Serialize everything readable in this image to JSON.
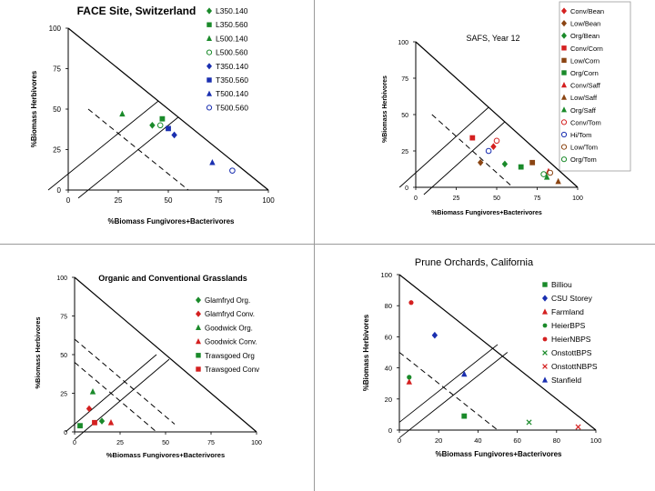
{
  "chart_data": [
    {
      "type": "scatter",
      "title": "FACE Site, Switzerland",
      "xlabel": "%Biomass Fungivores+Bacterivores",
      "ylabel": "%Biomass Herbivores",
      "xlim": [
        0,
        100
      ],
      "ylim": [
        0,
        100
      ],
      "xticks": [
        "0",
        "25",
        "50",
        "75",
        "100"
      ],
      "yticks": [
        "0",
        "25",
        "50",
        "75",
        "100"
      ],
      "series": [
        {
          "name": "L350.140",
          "color": "#1a8a2a",
          "marker": "diamond",
          "x": 42,
          "y": 40
        },
        {
          "name": "L350.560",
          "color": "#1a8a2a",
          "marker": "square",
          "x": 47,
          "y": 44
        },
        {
          "name": "L500.140",
          "color": "#1a8a2a",
          "marker": "triangle",
          "x": 27,
          "y": 47
        },
        {
          "name": "L500.560",
          "color": "#1a8a2a",
          "marker": "circle-open",
          "x": 46,
          "y": 40
        },
        {
          "name": "T350.140",
          "color": "#1a2fb0",
          "marker": "diamond",
          "x": 53,
          "y": 34
        },
        {
          "name": "T350.560",
          "color": "#1a2fb0",
          "marker": "square",
          "x": 50,
          "y": 38
        },
        {
          "name": "T500.140",
          "color": "#1a2fb0",
          "marker": "triangle",
          "x": 72,
          "y": 17
        },
        {
          "name": "T500.560",
          "color": "#1a2fb0",
          "marker": "circle-open",
          "x": 82,
          "y": 12
        }
      ]
    },
    {
      "type": "scatter",
      "title": "SAFS, Year 12",
      "xlabel": "%Biomass Fungivores+Bacterivores",
      "ylabel": "%Biomass Herbivores",
      "xlim": [
        0,
        100
      ],
      "ylim": [
        0,
        100
      ],
      "xticks": [
        "0",
        "25",
        "50",
        "75",
        "100"
      ],
      "yticks": [
        "0",
        "25",
        "50",
        "75",
        "100"
      ],
      "series": [
        {
          "name": "Conv/Bean",
          "color": "#d42020",
          "marker": "diamond",
          "x": 48,
          "y": 28
        },
        {
          "name": "Low/Bean",
          "color": "#8b4513",
          "marker": "diamond",
          "x": 40,
          "y": 17
        },
        {
          "name": "Org/Bean",
          "color": "#1a8a2a",
          "marker": "diamond",
          "x": 55,
          "y": 16
        },
        {
          "name": "Conv/Corn",
          "color": "#d42020",
          "marker": "square",
          "x": 35,
          "y": 34
        },
        {
          "name": "Low/Corn",
          "color": "#8b4513",
          "marker": "square",
          "x": 72,
          "y": 17
        },
        {
          "name": "Org/Corn",
          "color": "#1a8a2a",
          "marker": "square",
          "x": 65,
          "y": 14
        },
        {
          "name": "Conv/Saff",
          "color": "#d42020",
          "marker": "triangle",
          "x": 82,
          "y": 11
        },
        {
          "name": "Low/Saff",
          "color": "#8b4513",
          "marker": "triangle",
          "x": 88,
          "y": 4
        },
        {
          "name": "Org/Saff",
          "color": "#1a8a2a",
          "marker": "triangle",
          "x": 81,
          "y": 7
        },
        {
          "name": "Conv/Tom",
          "color": "#d42020",
          "marker": "circle-open",
          "x": 50,
          "y": 32
        },
        {
          "name": "Hi/Tom",
          "color": "#1a2fb0",
          "marker": "circle-open",
          "x": 45,
          "y": 25
        },
        {
          "name": "Low/Tom",
          "color": "#8b4513",
          "marker": "circle-open",
          "x": 83,
          "y": 10
        },
        {
          "name": "Org/Tom",
          "color": "#1a8a2a",
          "marker": "circle-open",
          "x": 79,
          "y": 9
        }
      ]
    },
    {
      "type": "scatter",
      "title": "Organic and Conventional Grasslands",
      "xlabel": "%Biomass Fungivores+Bacterivores",
      "ylabel": "%Biomass Herbivores",
      "xlim": [
        0,
        100
      ],
      "ylim": [
        0,
        100
      ],
      "xticks": [
        "0",
        "25",
        "50",
        "75",
        "100"
      ],
      "yticks": [
        "0",
        "25",
        "50",
        "75",
        "100"
      ],
      "series": [
        {
          "name": "Glamfryd Org.",
          "color": "#1a8a2a",
          "marker": "diamond",
          "x": 15,
          "y": 7
        },
        {
          "name": "Glamfryd Conv.",
          "color": "#d42020",
          "marker": "diamond",
          "x": 8,
          "y": 15
        },
        {
          "name": "Goodwick Org.",
          "color": "#1a8a2a",
          "marker": "triangle",
          "x": 10,
          "y": 26
        },
        {
          "name": "Goodwick Conv.",
          "color": "#d42020",
          "marker": "triangle",
          "x": 20,
          "y": 6
        },
        {
          "name": "Trawsgoed Org",
          "color": "#1a8a2a",
          "marker": "square",
          "x": 3,
          "y": 4
        },
        {
          "name": "Trawsgoed Conv",
          "color": "#d42020",
          "marker": "square",
          "x": 11,
          "y": 6
        }
      ]
    },
    {
      "type": "scatter",
      "title": "Prune Orchards, California",
      "xlabel": "%Biomass Fungivores+Bacterivores",
      "ylabel": "%Biomass Herbivores",
      "xlim": [
        0,
        100
      ],
      "ylim": [
        0,
        100
      ],
      "xticks": [
        "0",
        "20",
        "40",
        "60",
        "80",
        "100"
      ],
      "yticks": [
        "0",
        "20",
        "40",
        "60",
        "80",
        "100"
      ],
      "series": [
        {
          "name": "Billiou",
          "color": "#1a8a2a",
          "marker": "square",
          "x": 33,
          "y": 9
        },
        {
          "name": "CSU Storey",
          "color": "#1a2fb0",
          "marker": "diamond",
          "x": 18,
          "y": 61
        },
        {
          "name": "Farmland",
          "color": "#d42020",
          "marker": "triangle",
          "x": 5,
          "y": 31
        },
        {
          "name": "HeierBPS",
          "color": "#1a8a2a",
          "marker": "circle",
          "x": 5,
          "y": 34
        },
        {
          "name": "HeierNBPS",
          "color": "#d42020",
          "marker": "circle",
          "x": 6,
          "y": 82
        },
        {
          "name": "OnstottBPS",
          "color": "#1a8a2a",
          "marker": "x",
          "x": 66,
          "y": 5
        },
        {
          "name": "OnstottNBPS",
          "color": "#d42020",
          "marker": "x",
          "x": 91,
          "y": 2
        },
        {
          "name": "Stanfield",
          "color": "#1a2fb0",
          "marker": "triangle",
          "x": 33,
          "y": 36
        }
      ]
    }
  ]
}
